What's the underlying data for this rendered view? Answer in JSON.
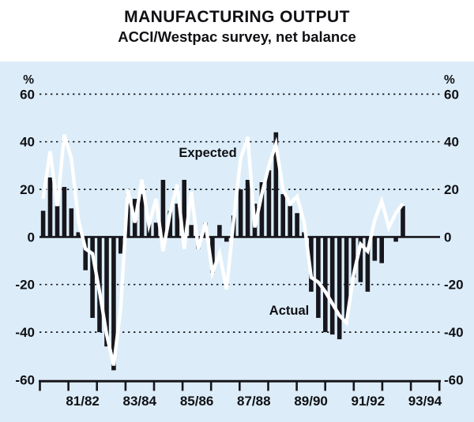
{
  "title": "MANUFACTURING OUTPUT",
  "subtitle": "ACCI/Westpac survey, net balance",
  "annotations": {
    "expected_label": "Expected",
    "actual_label": "Actual"
  },
  "y_axis": {
    "unit_label": "%",
    "tick_labels": [
      "60",
      "40",
      "20",
      "0",
      "-20",
      "-40",
      "-60"
    ],
    "tick_values": [
      60,
      40,
      20,
      0,
      -20,
      -40,
      -60
    ]
  },
  "x_axis": {
    "labels": [
      "81/82",
      "83/84",
      "85/86",
      "87/88",
      "89/90",
      "91/92",
      "93/94"
    ]
  },
  "colors": {
    "plot_bg": "#dcedf9",
    "bar": "#16161c",
    "line": "#ffffff",
    "text": "#101014",
    "grid": "#1a1a1e"
  },
  "chart_data": {
    "type": "bar",
    "title": "MANUFACTURING OUTPUT — ACCI/Westpac survey, net balance (%)",
    "ylabel": "%",
    "ylim": [
      -60,
      60
    ],
    "grid": "horizontal dotted every 20",
    "x": [
      "1980Q3",
      "1980Q4",
      "1981Q1",
      "1981Q2",
      "1981Q3",
      "1981Q4",
      "1982Q1",
      "1982Q2",
      "1982Q3",
      "1982Q4",
      "1983Q1",
      "1983Q2",
      "1983Q3",
      "1983Q4",
      "1984Q1",
      "1984Q2",
      "1984Q3",
      "1984Q4",
      "1985Q1",
      "1985Q2",
      "1985Q3",
      "1985Q4",
      "1986Q1",
      "1986Q2",
      "1986Q3",
      "1986Q4",
      "1987Q1",
      "1987Q2",
      "1987Q3",
      "1987Q4",
      "1988Q1",
      "1988Q2",
      "1988Q3",
      "1988Q4",
      "1989Q1",
      "1989Q2",
      "1989Q3",
      "1989Q4",
      "1990Q1",
      "1990Q2",
      "1990Q3",
      "1990Q4",
      "1991Q1",
      "1991Q2",
      "1991Q3",
      "1991Q4",
      "1992Q1",
      "1992Q2",
      "1992Q3",
      "1992Q4",
      "1993Q1",
      "1993Q2"
    ],
    "series": [
      {
        "name": "Actual",
        "style": "bar",
        "values": [
          11,
          25,
          13,
          21,
          12,
          2,
          -14,
          -34,
          -40,
          -46,
          -56,
          -7,
          18,
          16,
          18,
          7,
          6,
          24,
          11,
          14,
          24,
          5,
          -5,
          6,
          -15,
          5,
          -2,
          9,
          20,
          24,
          14,
          23,
          28,
          44,
          18,
          13,
          10,
          2,
          -23,
          -34,
          -40,
          -41,
          -43,
          -35,
          -17,
          -19,
          -23,
          -10,
          -11,
          0,
          -2,
          13
        ]
      },
      {
        "name": "Expected",
        "style": "line",
        "values": [
          16,
          36,
          13,
          43,
          33,
          7,
          -5,
          -7,
          -23,
          -41,
          -54,
          -30,
          20,
          6,
          24,
          5,
          16,
          -6,
          10,
          22,
          -5,
          19,
          -5,
          6,
          -15,
          -7,
          -22,
          7,
          33,
          42,
          4,
          18,
          30,
          39,
          20,
          14,
          17,
          6,
          -17,
          -19,
          -23,
          -28,
          -33,
          -36,
          -16,
          -3,
          -6,
          7,
          15,
          4,
          10,
          14
        ]
      }
    ]
  }
}
